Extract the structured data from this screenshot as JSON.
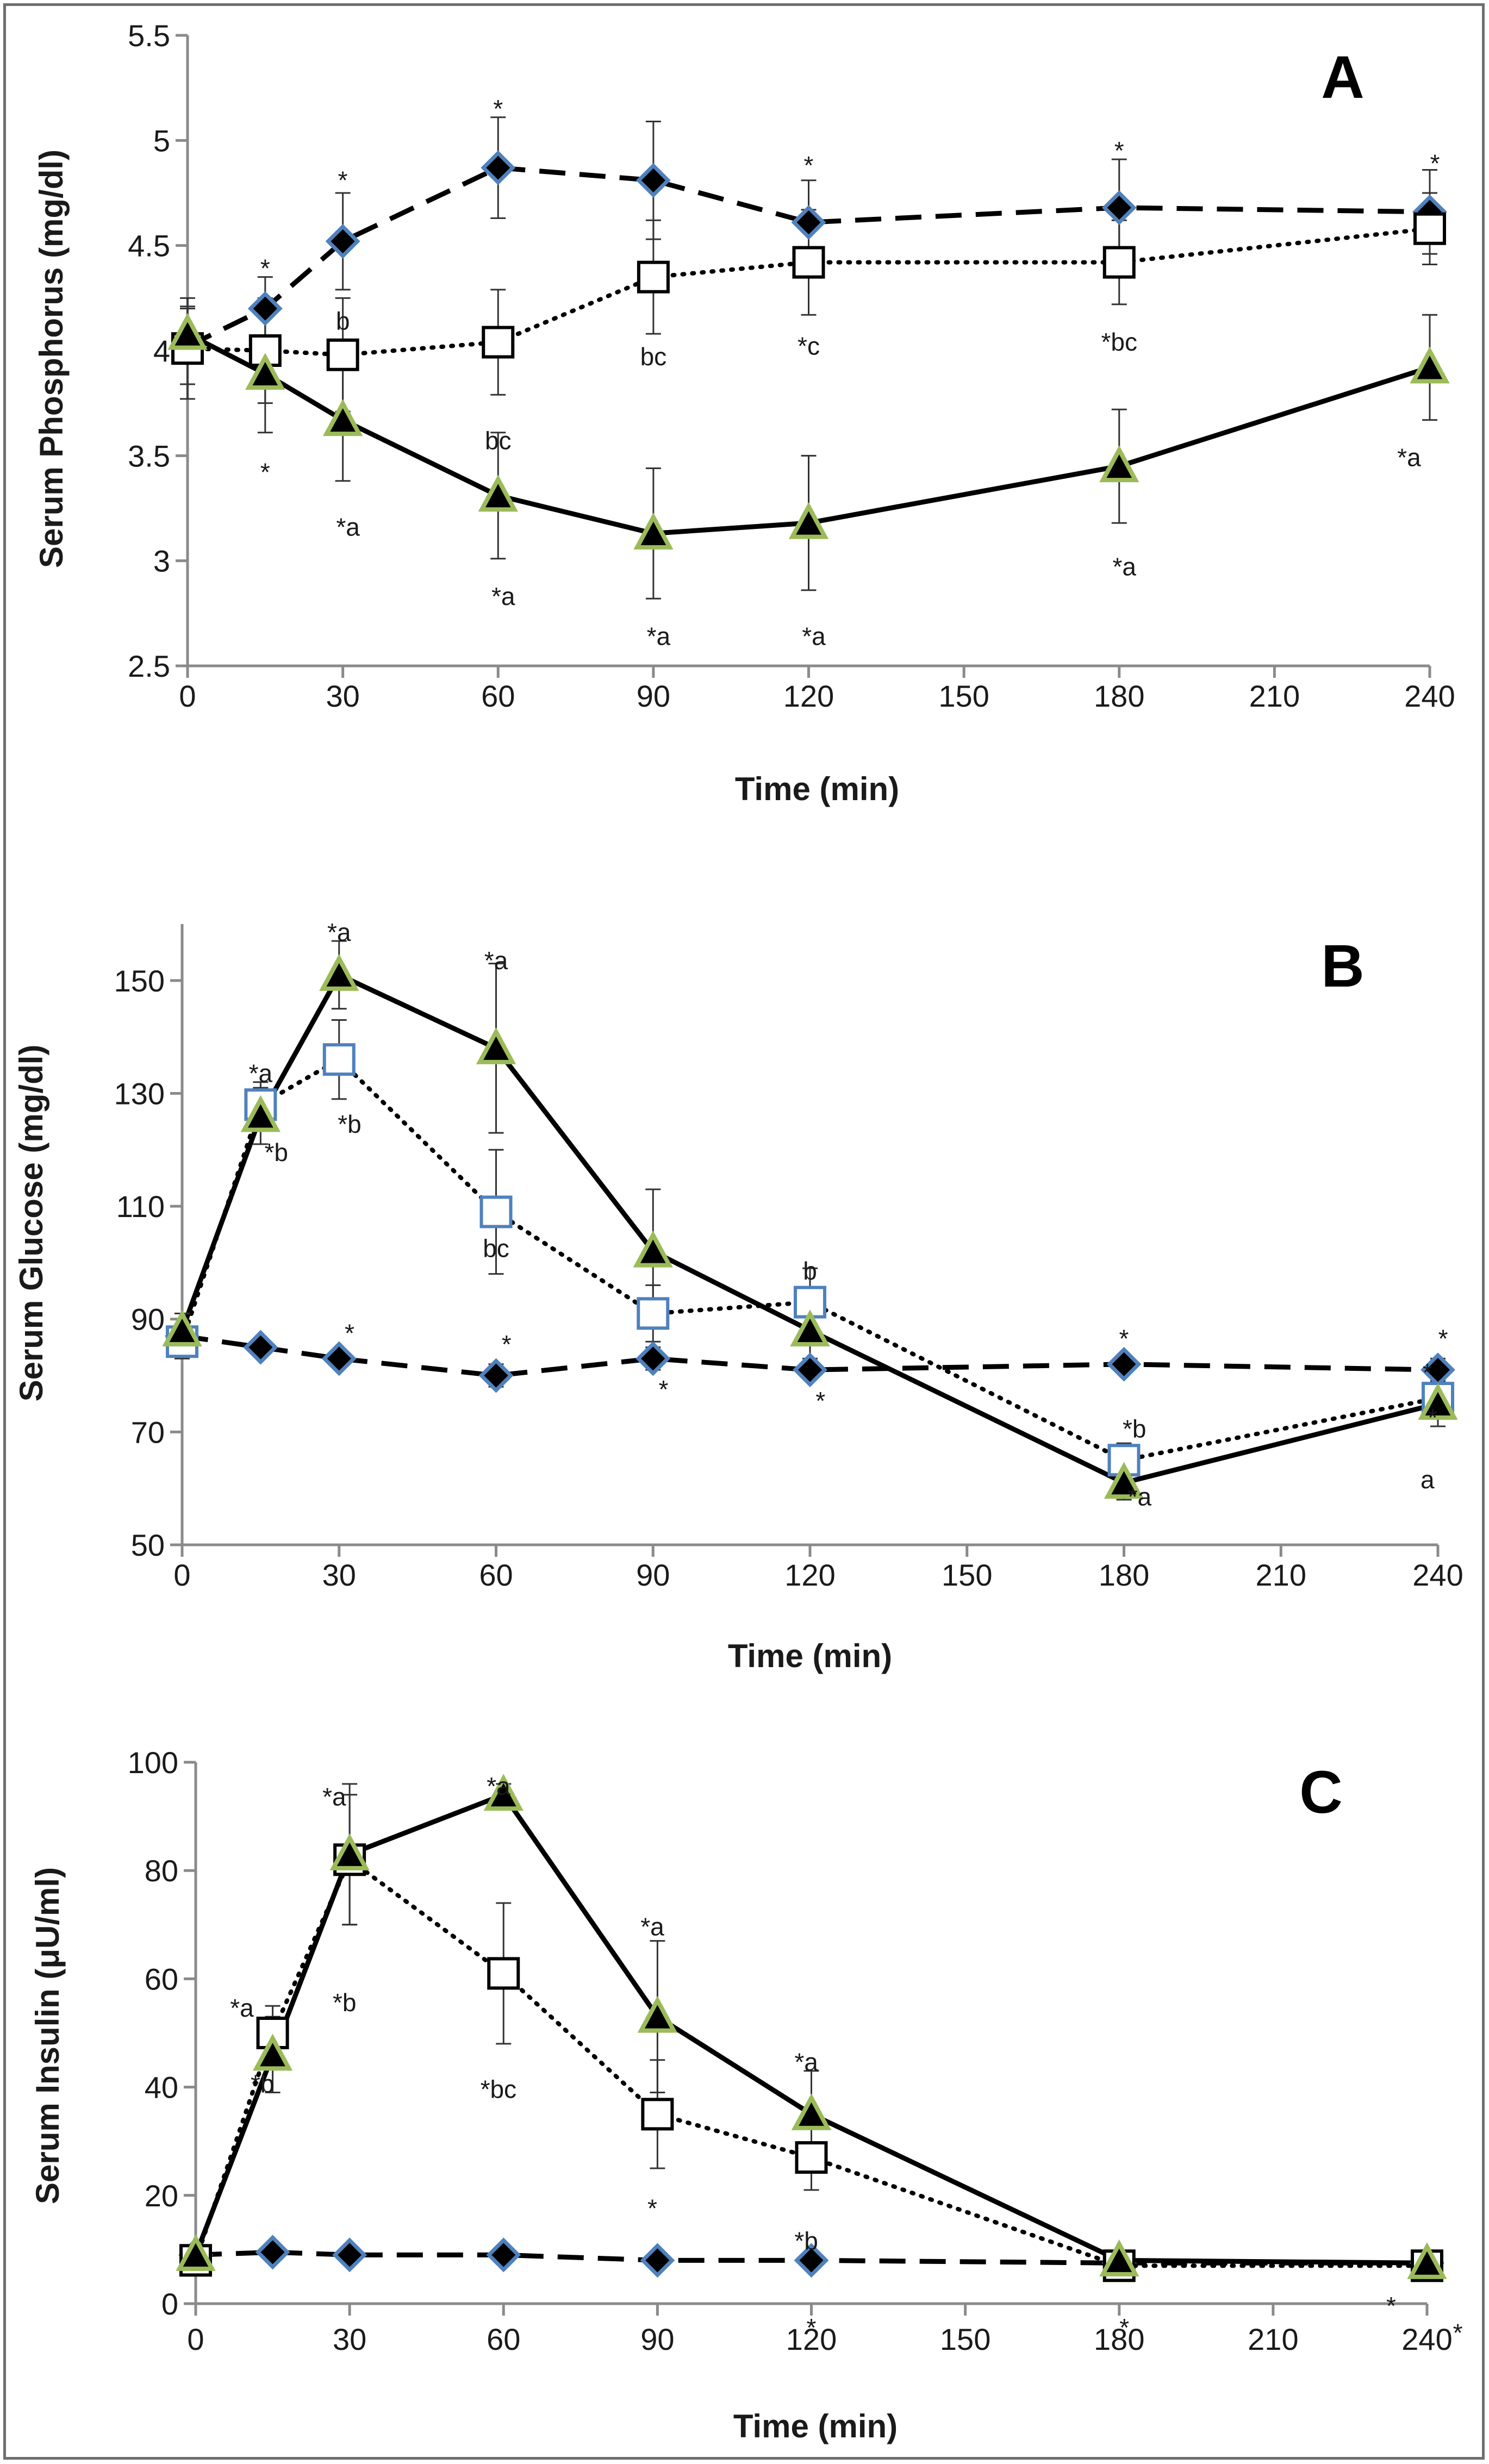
{
  "colors": {
    "axis": "#8a8a8a",
    "line": "#000000",
    "diamond_fill": "#000000",
    "diamond_edge": "#4f81bd",
    "triangle_fill": "#000000",
    "triangle_edge": "#9bbb59",
    "square_fill": "#ffffff",
    "square_edge_a": "#000000",
    "square_edge_b": "#4f81bd"
  },
  "chart_data": [
    {
      "panel": "A",
      "type": "line",
      "ylabel": "Serum Phosphorus (mg/dl)",
      "xlabel": "Time (min)",
      "ylim": [
        2.5,
        5.5
      ],
      "yticks": [
        2.5,
        3,
        3.5,
        4,
        4.5,
        5,
        5.5
      ],
      "ytick_labels": [
        "2.5",
        "3",
        "3.5",
        "4",
        "4.5",
        "5",
        "5.5"
      ],
      "xticks": [
        0,
        30,
        60,
        90,
        120,
        150,
        180,
        210,
        240
      ],
      "xtick_labels": [
        "0",
        "30",
        "60",
        "90",
        "120",
        "150",
        "180",
        "210",
        "240"
      ],
      "series": [
        {
          "name": "diamond-dashed",
          "marker": "diamond",
          "style": "dashed",
          "x": [
            0,
            15,
            30,
            60,
            90,
            120,
            180,
            240
          ],
          "y": [
            4.02,
            4.2,
            4.52,
            4.87,
            4.81,
            4.61,
            4.68,
            4.66
          ],
          "err": [
            0.18,
            0.15,
            0.23,
            0.24,
            0.28,
            0.2,
            0.23,
            0.2
          ]
        },
        {
          "name": "square-dotted",
          "marker": "square",
          "style": "dotted",
          "x": [
            0,
            15,
            30,
            60,
            90,
            120,
            180,
            240
          ],
          "y": [
            4.01,
            4.0,
            3.98,
            4.04,
            4.35,
            4.42,
            4.42,
            4.58
          ],
          "err": [
            0.24,
            0.25,
            0.27,
            0.25,
            0.27,
            0.25,
            0.2,
            0.17
          ]
        },
        {
          "name": "triangle-solid",
          "marker": "triangle",
          "style": "solid",
          "x": [
            0,
            15,
            30,
            60,
            90,
            120,
            180,
            240
          ],
          "y": [
            4.08,
            3.89,
            3.67,
            3.31,
            3.13,
            3.18,
            3.45,
            3.92
          ],
          "err": [
            0.13,
            0.28,
            0.29,
            0.3,
            0.31,
            0.32,
            0.27,
            0.25
          ]
        }
      ],
      "annotations": [
        {
          "text": "*",
          "x": 15,
          "y": 4.35
        },
        {
          "text": "*",
          "x": 30,
          "y": 4.77
        },
        {
          "text": "*",
          "x": 60,
          "y": 5.11
        },
        {
          "text": "*",
          "x": 120,
          "y": 4.84
        },
        {
          "text": "*",
          "x": 180,
          "y": 4.91
        },
        {
          "text": "*",
          "x": 241,
          "y": 4.85
        },
        {
          "text": "b",
          "x": 30,
          "y": 4.1
        },
        {
          "text": "bc",
          "x": 60,
          "y": 3.53
        },
        {
          "text": "bc",
          "x": 90,
          "y": 3.93
        },
        {
          "text": "*c",
          "x": 120,
          "y": 3.98
        },
        {
          "text": "*bc",
          "x": 180,
          "y": 4.0
        },
        {
          "text": "*",
          "x": 15,
          "y": 3.38
        },
        {
          "text": "*a",
          "x": 31,
          "y": 3.12
        },
        {
          "text": "*a",
          "x": 61,
          "y": 2.79
        },
        {
          "text": "*a",
          "x": 91,
          "y": 2.6
        },
        {
          "text": "*a",
          "x": 121,
          "y": 2.6
        },
        {
          "text": "*a",
          "x": 181,
          "y": 2.93
        },
        {
          "text": "*a",
          "x": 236,
          "y": 3.45
        }
      ],
      "panel_letter": "A"
    },
    {
      "panel": "B",
      "type": "line",
      "ylabel": "Serum Glucose (mg/dl)",
      "xlabel": "Time (min)",
      "ylim": [
        50,
        160
      ],
      "yticks": [
        50,
        70,
        90,
        110,
        130,
        150
      ],
      "ytick_labels": [
        "50",
        "70",
        "90",
        "110",
        "130",
        "150"
      ],
      "xticks": [
        0,
        30,
        60,
        90,
        120,
        150,
        180,
        210,
        240
      ],
      "xtick_labels": [
        "0",
        "30",
        "60",
        "90",
        "120",
        "150",
        "180",
        "210",
        "240"
      ],
      "series": [
        {
          "name": "diamond-dashed",
          "marker": "diamond",
          "style": "dashed",
          "x": [
            0,
            15,
            30,
            60,
            90,
            120,
            180,
            240
          ],
          "y": [
            87,
            85,
            83,
            80,
            83,
            81,
            82,
            81
          ],
          "err": [
            2,
            1.5,
            1.5,
            2,
            2,
            1.5,
            1.5,
            2
          ]
        },
        {
          "name": "square-dotted",
          "marker": "square",
          "style": "dotted",
          "x": [
            0,
            15,
            30,
            60,
            90,
            120,
            180,
            240
          ],
          "y": [
            86,
            128,
            136,
            109,
            91,
            93,
            65,
            76
          ],
          "err": [
            3,
            4,
            7,
            11,
            5,
            6,
            3,
            3
          ]
        },
        {
          "name": "triangle-solid",
          "marker": "triangle",
          "style": "solid",
          "x": [
            0,
            15,
            30,
            60,
            90,
            120,
            180,
            240
          ],
          "y": [
            88,
            126,
            151,
            138,
            102,
            88,
            61,
            75
          ],
          "err": [
            3,
            5,
            6,
            15,
            11,
            5,
            3,
            4
          ]
        }
      ],
      "annotations": [
        {
          "text": "*a",
          "x": 30,
          "y": 157
        },
        {
          "text": "*a",
          "x": 60,
          "y": 152
        },
        {
          "text": "*a",
          "x": 15,
          "y": 132
        },
        {
          "text": "*b",
          "x": 18,
          "y": 118
        },
        {
          "text": "*b",
          "x": 32,
          "y": 123
        },
        {
          "text": "bc",
          "x": 60,
          "y": 101
        },
        {
          "text": "b",
          "x": 120,
          "y": 97
        },
        {
          "text": "*",
          "x": 32,
          "y": 86
        },
        {
          "text": "*",
          "x": 62,
          "y": 84
        },
        {
          "text": "*",
          "x": 92,
          "y": 76
        },
        {
          "text": "*",
          "x": 122,
          "y": 74
        },
        {
          "text": "*",
          "x": 180,
          "y": 85
        },
        {
          "text": "*",
          "x": 241,
          "y": 85
        },
        {
          "text": "*b",
          "x": 182,
          "y": 69
        },
        {
          "text": "*a",
          "x": 183,
          "y": 57
        },
        {
          "text": "*",
          "x": 238,
          "y": 79
        },
        {
          "text": "*",
          "x": 239,
          "y": 71
        },
        {
          "text": "a",
          "x": 238,
          "y": 60
        }
      ],
      "panel_letter": "B"
    },
    {
      "panel": "C",
      "type": "line",
      "ylabel": "Serum Insulin (μU/ml)",
      "xlabel": "Time (min)",
      "ylim": [
        0,
        100
      ],
      "yticks": [
        0,
        20,
        40,
        60,
        80,
        100
      ],
      "ytick_labels": [
        "0",
        "20",
        "40",
        "60",
        "80",
        "100"
      ],
      "xticks": [
        0,
        30,
        60,
        90,
        120,
        150,
        180,
        210,
        240
      ],
      "xtick_labels": [
        "0",
        "30",
        "60",
        "90",
        "120",
        "150",
        "180",
        "210",
        "240"
      ],
      "series": [
        {
          "name": "diamond-dashed",
          "marker": "diamond",
          "style": "dashed",
          "x": [
            0,
            15,
            30,
            60,
            90,
            120,
            180,
            240
          ],
          "y": [
            9,
            9.5,
            9,
            9,
            8,
            8,
            7.5,
            7.5
          ],
          "err": [
            0.8,
            0.8,
            0.8,
            0.8,
            0.8,
            0.8,
            0.8,
            0.8
          ]
        },
        {
          "name": "square-dotted",
          "marker": "square",
          "style": "dotted",
          "x": [
            0,
            15,
            30,
            60,
            90,
            120,
            180,
            240
          ],
          "y": [
            8,
            50,
            82,
            61,
            35,
            27,
            7,
            7
          ],
          "err": [
            1,
            5,
            12,
            13,
            10,
            6,
            1.5,
            1.5
          ]
        },
        {
          "name": "triangle-solid",
          "marker": "triangle",
          "style": "solid",
          "x": [
            0,
            15,
            30,
            60,
            90,
            120,
            180,
            240
          ],
          "y": [
            9,
            46,
            83,
            94,
            53,
            35,
            8,
            7.5
          ],
          "err": [
            1.5,
            7,
            13,
            2,
            14,
            8,
            1.5,
            1.5
          ]
        }
      ],
      "annotations": [
        {
          "text": "*a",
          "x": 27,
          "y": 92
        },
        {
          "text": "*a",
          "x": 59,
          "y": 94
        },
        {
          "text": "*a",
          "x": 9,
          "y": 53
        },
        {
          "text": "*b",
          "x": 13,
          "y": 39
        },
        {
          "text": "*b",
          "x": 29,
          "y": 54
        },
        {
          "text": "*bc",
          "x": 59,
          "y": 38
        },
        {
          "text": "*a",
          "x": 89,
          "y": 68
        },
        {
          "text": "*a",
          "x": 119,
          "y": 43
        },
        {
          "text": "*",
          "x": 89,
          "y": 16
        },
        {
          "text": "*b",
          "x": 119,
          "y": 10
        },
        {
          "text": "*",
          "x": 120,
          "y": -6
        },
        {
          "text": "*",
          "x": 181,
          "y": -6
        },
        {
          "text": "*",
          "x": 233,
          "y": -2
        },
        {
          "text": "*",
          "x": 246,
          "y": -7
        }
      ],
      "panel_letter": "C"
    }
  ]
}
